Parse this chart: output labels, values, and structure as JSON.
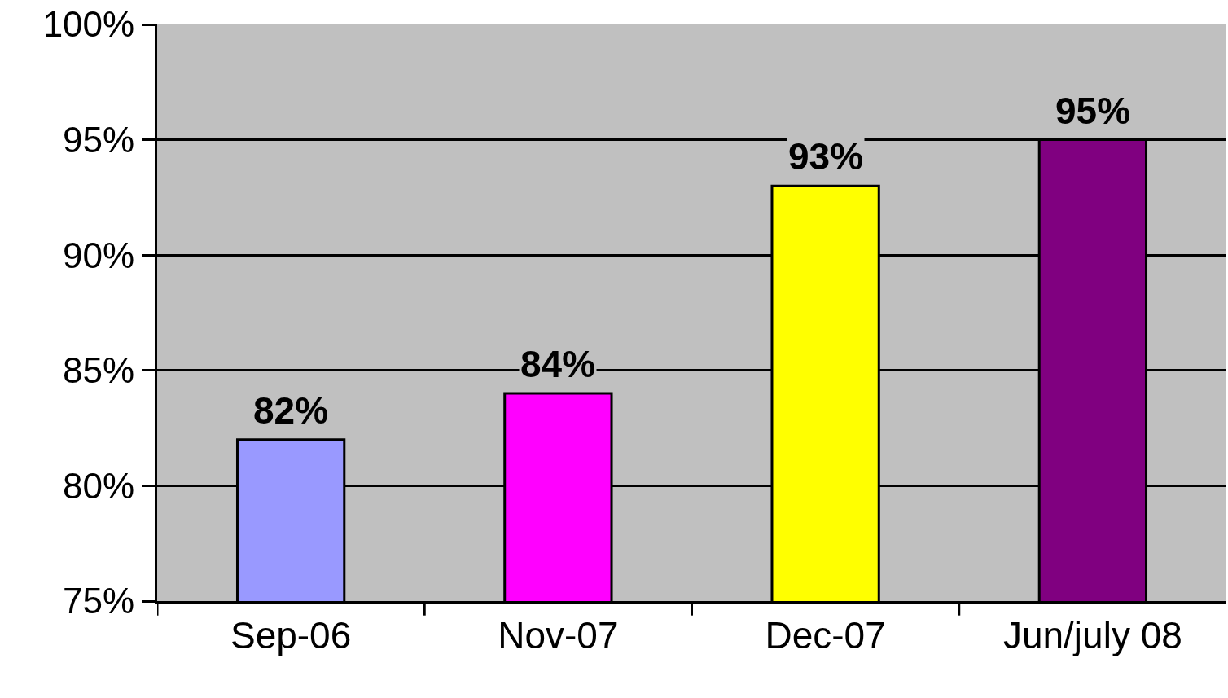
{
  "chart_data": {
    "type": "bar",
    "categories": [
      "Sep-06",
      "Nov-07",
      "Dec-07",
      "Jun/july 08"
    ],
    "values": [
      82,
      84,
      93,
      95
    ],
    "colors": [
      "#9999ff",
      "#ff00ff",
      "#ffff00",
      "#800080"
    ],
    "value_labels": [
      "82%",
      "84%",
      "93%",
      "95%"
    ],
    "ylim": [
      75,
      100
    ],
    "yticks": [
      {
        "value": 75,
        "label": "75%"
      },
      {
        "value": 80,
        "label": "80%"
      },
      {
        "value": 85,
        "label": "85%"
      },
      {
        "value": 90,
        "label": "90%"
      },
      {
        "value": 95,
        "label": "95%"
      },
      {
        "value": 100,
        "label": "100%"
      }
    ],
    "grid": "y"
  }
}
